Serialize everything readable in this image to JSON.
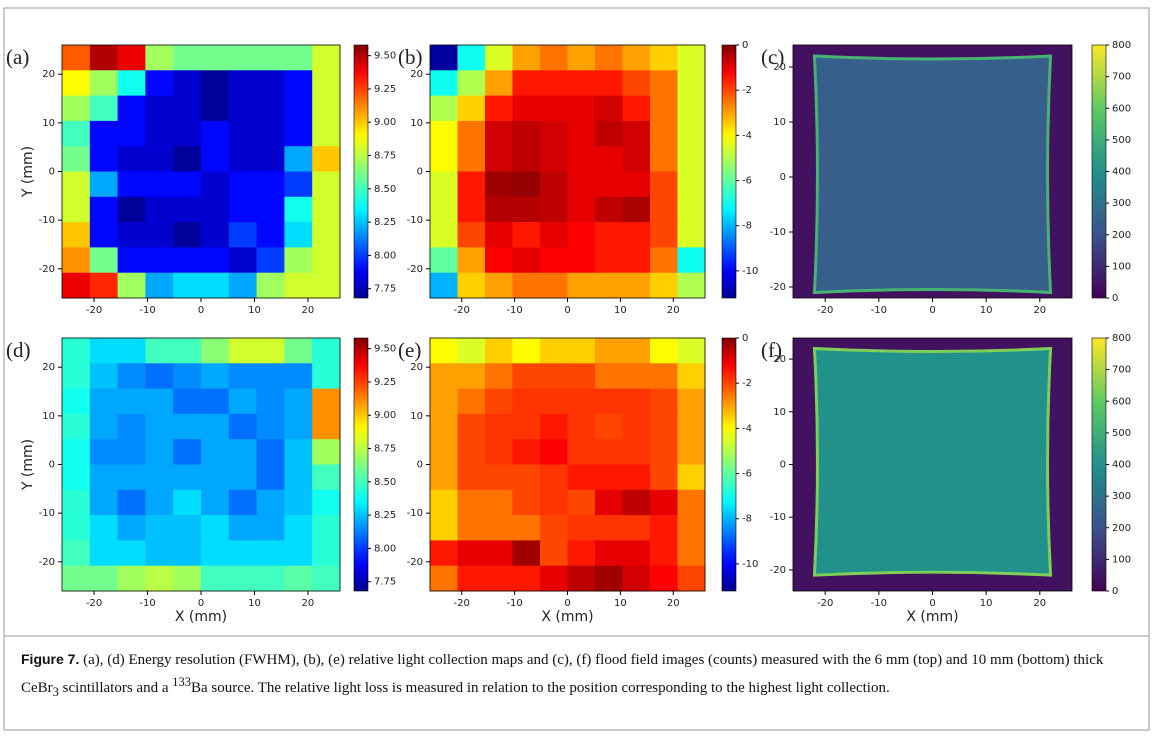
{
  "chart_data": [
    {
      "type": "heatmap",
      "label": "(a)",
      "ylabel": "Y (mm)",
      "colormap": "jet",
      "xlim": [
        -26,
        26
      ],
      "ylim": [
        -26,
        26
      ],
      "xticks": [
        -20,
        -10,
        0,
        10,
        20
      ],
      "yticks": [
        -20,
        -10,
        0,
        10,
        20
      ],
      "zlim": [
        7.68,
        9.58
      ],
      "zticks": [
        7.75,
        {
          "value": 8,
          "label": "8.00"
        },
        8.25,
        {
          "value": 8.5,
          "label": "8.50"
        },
        8.75,
        {
          "value": 9,
          "label": "9.00"
        },
        9.25,
        {
          "value": 9.5,
          "label": "9.50"
        }
      ],
      "z": [
        [
          9.2,
          9.5,
          9.4,
          8.7,
          8.6,
          8.6,
          8.6,
          8.6,
          8.6,
          8.8
        ],
        [
          8.9,
          8.7,
          8.4,
          7.9,
          7.8,
          7.7,
          7.8,
          7.8,
          7.9,
          8.8
        ],
        [
          8.7,
          8.5,
          7.9,
          7.8,
          7.8,
          7.7,
          7.8,
          7.8,
          7.9,
          8.8
        ],
        [
          8.5,
          7.9,
          7.9,
          7.8,
          7.8,
          7.9,
          7.8,
          7.8,
          7.9,
          8.8
        ],
        [
          8.6,
          7.9,
          7.8,
          7.8,
          7.7,
          7.9,
          7.8,
          7.8,
          8.2,
          9.0
        ],
        [
          8.8,
          8.2,
          7.9,
          7.9,
          7.9,
          7.8,
          7.9,
          7.9,
          8.0,
          8.8
        ],
        [
          8.8,
          7.9,
          7.7,
          7.8,
          7.8,
          7.8,
          7.9,
          7.9,
          8.4,
          8.8
        ],
        [
          9.0,
          7.9,
          7.8,
          7.8,
          7.7,
          7.8,
          8.0,
          7.9,
          8.3,
          8.8
        ],
        [
          9.1,
          8.6,
          7.9,
          7.9,
          7.9,
          7.9,
          7.8,
          8.0,
          8.7,
          8.8
        ],
        [
          9.4,
          9.3,
          8.7,
          8.2,
          8.3,
          8.3,
          8.2,
          8.7,
          8.8,
          8.8
        ]
      ]
    },
    {
      "type": "heatmap",
      "label": "(b)",
      "colormap": "jet",
      "xlim": [
        -26,
        26
      ],
      "ylim": [
        -26,
        26
      ],
      "xticks": [
        -20,
        -10,
        0,
        10,
        20
      ],
      "yticks": [
        -20,
        -10,
        0,
        10,
        20
      ],
      "zlim": [
        -11.2,
        0
      ],
      "zticks": [
        -10,
        -8,
        -6,
        -4,
        -2,
        0
      ],
      "z": [
        [
          -11,
          -7,
          -4.5,
          -3,
          -2.5,
          -3,
          -2.5,
          -3,
          -3.5,
          -4.5
        ],
        [
          -7,
          -5,
          -3,
          -1.5,
          -1.5,
          -1.5,
          -1.5,
          -2,
          -2.5,
          -4.5
        ],
        [
          -5,
          -3.5,
          -1.5,
          -1,
          -1,
          -1,
          -0.8,
          -1.5,
          -2.5,
          -4.5
        ],
        [
          -4,
          -2.5,
          -0.8,
          -0.6,
          -0.8,
          -1,
          -0.6,
          -0.8,
          -2.5,
          -4.5
        ],
        [
          -4,
          -2.5,
          -0.8,
          -0.6,
          -0.8,
          -1,
          -1,
          -0.8,
          -2.5,
          -4.5
        ],
        [
          -4.5,
          -1.5,
          -0.3,
          -0.2,
          -0.6,
          -1,
          -1,
          -1,
          -2,
          -4.5
        ],
        [
          -4.5,
          -1.5,
          -0.5,
          -0.5,
          -0.6,
          -1,
          -0.6,
          -0.4,
          -2,
          -4.5
        ],
        [
          -4.5,
          -2,
          -1,
          -1.5,
          -1,
          -1.2,
          -1.5,
          -1.5,
          -2,
          -4.5
        ],
        [
          -6,
          -3,
          -1.2,
          -1,
          -1.2,
          -1.2,
          -1.5,
          -1.5,
          -2.5,
          -7
        ],
        [
          -8,
          -3.5,
          -3,
          -2.5,
          -2.5,
          -3,
          -3,
          -3,
          -3.5,
          -5
        ]
      ]
    },
    {
      "type": "image",
      "label": "(c)",
      "colormap": "viridis",
      "xlim": [
        -26,
        26
      ],
      "ylim": [
        -22,
        24
      ],
      "xticks": [
        -20,
        -10,
        0,
        10,
        20
      ],
      "yticks": [
        -20,
        -10,
        0,
        10,
        20
      ],
      "zlim": [
        0,
        800
      ],
      "zticks": [
        0,
        100,
        200,
        300,
        400,
        500,
        600,
        700,
        800
      ]
    },
    {
      "type": "heatmap",
      "label": "(d)",
      "ylabel": "Y (mm)",
      "xlabel": "X (mm)",
      "colormap": "jet",
      "xlim": [
        -26,
        26
      ],
      "ylim": [
        -26,
        26
      ],
      "xticks": [
        -20,
        -10,
        0,
        10,
        20
      ],
      "yticks": [
        -20,
        -10,
        0,
        10,
        20
      ],
      "zlim": [
        7.68,
        9.58
      ],
      "zticks": [
        7.75,
        {
          "value": 8,
          "label": "8.00"
        },
        8.25,
        {
          "value": 8.5,
          "label": "8.50"
        },
        8.75,
        {
          "value": 9,
          "label": "9.00"
        },
        9.25,
        {
          "value": 9.5,
          "label": "9.50"
        }
      ],
      "z": [
        [
          8.45,
          8.3,
          8.3,
          8.5,
          8.5,
          8.65,
          8.8,
          8.8,
          8.6,
          8.45
        ],
        [
          8.45,
          8.25,
          8.15,
          8.1,
          8.15,
          8.2,
          8.15,
          8.15,
          8.15,
          8.45
        ],
        [
          8.4,
          8.2,
          8.2,
          8.2,
          8.1,
          8.1,
          8.2,
          8.15,
          8.2,
          9.1
        ],
        [
          8.45,
          8.2,
          8.15,
          8.2,
          8.2,
          8.2,
          8.1,
          8.15,
          8.2,
          9.1
        ],
        [
          8.4,
          8.15,
          8.15,
          8.2,
          8.1,
          8.2,
          8.2,
          8.1,
          8.25,
          8.7
        ],
        [
          8.4,
          8.2,
          8.2,
          8.2,
          8.2,
          8.2,
          8.2,
          8.1,
          8.25,
          8.5
        ],
        [
          8.45,
          8.2,
          8.1,
          8.2,
          8.3,
          8.2,
          8.1,
          8.2,
          8.25,
          8.4
        ],
        [
          8.45,
          8.3,
          8.2,
          8.25,
          8.25,
          8.3,
          8.2,
          8.2,
          8.3,
          8.45
        ],
        [
          8.5,
          8.3,
          8.3,
          8.25,
          8.25,
          8.3,
          8.3,
          8.3,
          8.3,
          8.45
        ],
        [
          8.6,
          8.6,
          8.7,
          8.75,
          8.7,
          8.5,
          8.5,
          8.5,
          8.55,
          8.5
        ]
      ]
    },
    {
      "type": "heatmap",
      "label": "(e)",
      "xlabel": "X (mm)",
      "colormap": "jet",
      "xlim": [
        -26,
        26
      ],
      "ylim": [
        -26,
        26
      ],
      "xticks": [
        -20,
        -10,
        0,
        10,
        20
      ],
      "yticks": [
        -20,
        -10,
        0,
        10,
        20
      ],
      "zlim": [
        -11.2,
        0
      ],
      "zticks": [
        -10,
        -8,
        -6,
        -4,
        -2,
        0
      ],
      "z": [
        [
          -4,
          -4.5,
          -3.5,
          -4,
          -3.5,
          -3.5,
          -3,
          -3,
          -4,
          -4.5
        ],
        [
          -3,
          -3,
          -2.5,
          -2,
          -2,
          -2,
          -2.5,
          -2.5,
          -2.5,
          -3.5
        ],
        [
          -3,
          -2.5,
          -2,
          -1.8,
          -1.8,
          -1.8,
          -1.8,
          -1.8,
          -2,
          -3
        ],
        [
          -3,
          -2,
          -1.8,
          -1.8,
          -1.5,
          -1.8,
          -2,
          -1.8,
          -2,
          -3
        ],
        [
          -3,
          -2,
          -1.8,
          -1.5,
          -1.2,
          -1.8,
          -1.8,
          -1.8,
          -2,
          -3
        ],
        [
          -3,
          -2,
          -2,
          -2,
          -1.8,
          -1.5,
          -1.5,
          -1.5,
          -2,
          -3.5
        ],
        [
          -3.5,
          -2.5,
          -2.5,
          -2,
          -1.8,
          -2,
          -1,
          -0.6,
          -1,
          -2.5
        ],
        [
          -3.5,
          -2.5,
          -2.5,
          -2.5,
          -2,
          -1.8,
          -1.8,
          -1.8,
          -1.5,
          -2.5
        ],
        [
          -1.5,
          -1,
          -1,
          -0.3,
          -2,
          -1.5,
          -1,
          -1,
          -1.5,
          -2.5
        ],
        [
          -2.5,
          -1.5,
          -1.5,
          -1.5,
          -1,
          -0.6,
          -0.3,
          -0.8,
          -1.2,
          -2
        ]
      ]
    },
    {
      "type": "image",
      "label": "(f)",
      "xlabel": "X (mm)",
      "colormap": "viridis",
      "xlim": [
        -26,
        26
      ],
      "ylim": [
        -24,
        24
      ],
      "xticks": [
        -20,
        -10,
        0,
        10,
        20
      ],
      "yticks": [
        -20,
        -10,
        0,
        10,
        20
      ],
      "zlim": [
        0,
        800
      ],
      "zticks": [
        0,
        100,
        200,
        300,
        400,
        500,
        600,
        700,
        800
      ]
    }
  ],
  "caption": {
    "label": "Figure 7.",
    "text_1": " (a), (d) Energy resolution (FWHM), (b), (e) relative light collection maps and (c), (f) flood field images (counts) measured with the 6 mm (top) and 10 mm (bottom) thick CeBr",
    "sub": "3",
    "text_2": " scintillators and a ",
    "sup": "133",
    "text_3": "Ba source. The relative light loss is measured in relation to the position corresponding to the highest light collection."
  }
}
